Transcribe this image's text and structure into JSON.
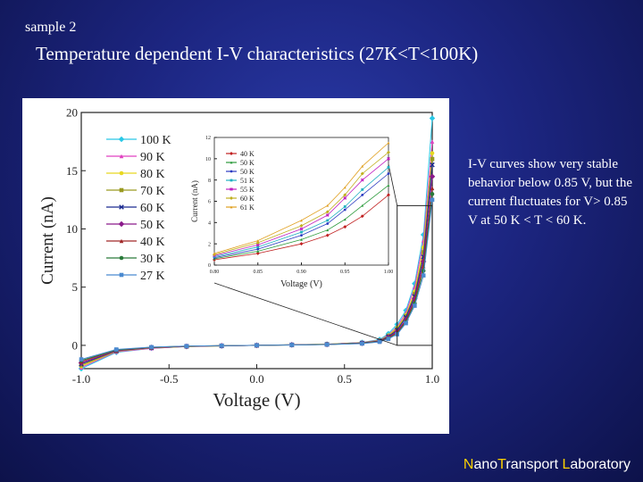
{
  "slide": {
    "corner_label": "sample 2",
    "title": "Temperature dependent I-V characteristics (27K<T<100K)",
    "note": "I-V curves show very stable behavior below 0.85 V, but the current fluctuates for V> 0.85 V at 50 K < T < 60 K.",
    "footer": {
      "part1_hl": "N",
      "part1": "ano",
      "part2_hl": "T",
      "part2": "ransport ",
      "part3_hl": "L",
      "part3": "aboratory"
    }
  },
  "chart_data": [
    {
      "type": "line",
      "xlabel": "Voltage (V)",
      "ylabel": "Current (nA)",
      "xlim": [
        -1.0,
        1.0
      ],
      "ylim": [
        -2,
        20
      ],
      "xticks": [
        "-1.0",
        "-0.5",
        "0.0",
        "0.5",
        "1.0"
      ],
      "yticks": [
        "0",
        "5",
        "10",
        "15",
        "20"
      ],
      "legend_position": "top-left",
      "series": [
        {
          "name": "100 K",
          "color": "#29c8e6",
          "x": [
            -1.0,
            -0.8,
            -0.6,
            -0.4,
            -0.2,
            0.0,
            0.2,
            0.4,
            0.6,
            0.7,
            0.75,
            0.8,
            0.85,
            0.9,
            0.95,
            1.0
          ],
          "y": [
            -2.0,
            -0.6,
            -0.25,
            -0.1,
            -0.05,
            0.0,
            0.05,
            0.1,
            0.25,
            0.5,
            1.0,
            1.8,
            3.0,
            5.3,
            9.5,
            19.5
          ]
        },
        {
          "name": "90 K",
          "color": "#e040c0",
          "x": [
            -1.0,
            -0.8,
            -0.6,
            -0.4,
            -0.2,
            0.0,
            0.2,
            0.4,
            0.6,
            0.7,
            0.75,
            0.8,
            0.85,
            0.9,
            0.95,
            1.0
          ],
          "y": [
            -1.9,
            -0.55,
            -0.25,
            -0.1,
            -0.05,
            0.0,
            0.05,
            0.1,
            0.24,
            0.45,
            0.9,
            1.6,
            2.8,
            5.0,
            9.0,
            17.5
          ]
        },
        {
          "name": "80 K",
          "color": "#e8d820",
          "x": [
            -1.0,
            -0.8,
            -0.6,
            -0.4,
            -0.2,
            0.0,
            0.2,
            0.4,
            0.6,
            0.7,
            0.75,
            0.8,
            0.85,
            0.9,
            0.95,
            1.0
          ],
          "y": [
            -1.8,
            -0.5,
            -0.22,
            -0.1,
            -0.05,
            0.0,
            0.05,
            0.1,
            0.22,
            0.42,
            0.85,
            1.5,
            2.6,
            4.6,
            8.4,
            16.5
          ]
        },
        {
          "name": "70 K",
          "color": "#9a9a20",
          "x": [
            -1.0,
            -0.8,
            -0.6,
            -0.4,
            -0.2,
            0.0,
            0.2,
            0.4,
            0.6,
            0.7,
            0.75,
            0.8,
            0.85,
            0.9,
            0.95,
            1.0
          ],
          "y": [
            -1.7,
            -0.5,
            -0.2,
            -0.1,
            -0.04,
            0.0,
            0.04,
            0.1,
            0.2,
            0.4,
            0.8,
            1.4,
            2.5,
            4.4,
            8.0,
            16.0
          ]
        },
        {
          "name": "60 K",
          "color": "#1a2a90",
          "x": [
            -1.0,
            -0.8,
            -0.6,
            -0.4,
            -0.2,
            0.0,
            0.2,
            0.4,
            0.6,
            0.7,
            0.75,
            0.8,
            0.85,
            0.9,
            0.95,
            1.0
          ],
          "y": [
            -1.6,
            -0.45,
            -0.2,
            -0.08,
            -0.04,
            0.0,
            0.04,
            0.08,
            0.2,
            0.38,
            0.75,
            1.3,
            2.4,
            4.2,
            7.6,
            15.5
          ]
        },
        {
          "name": "50 K",
          "color": "#8a1a8a",
          "x": [
            -1.0,
            -0.8,
            -0.6,
            -0.4,
            -0.2,
            0.0,
            0.2,
            0.4,
            0.6,
            0.7,
            0.75,
            0.8,
            0.85,
            0.9,
            0.95,
            1.0
          ],
          "y": [
            -1.5,
            -0.45,
            -0.18,
            -0.08,
            -0.04,
            0.0,
            0.04,
            0.08,
            0.18,
            0.36,
            0.7,
            1.2,
            2.2,
            4.0,
            7.2,
            14.5
          ]
        },
        {
          "name": "40 K",
          "color": "#a02828",
          "x": [
            -1.0,
            -0.8,
            -0.6,
            -0.4,
            -0.2,
            0.0,
            0.2,
            0.4,
            0.6,
            0.7,
            0.75,
            0.8,
            0.85,
            0.9,
            0.95,
            1.0
          ],
          "y": [
            -1.4,
            -0.4,
            -0.18,
            -0.08,
            -0.03,
            0.0,
            0.03,
            0.08,
            0.18,
            0.34,
            0.65,
            1.1,
            2.1,
            3.8,
            6.8,
            13.5
          ]
        },
        {
          "name": "30 K",
          "color": "#2a7a3a",
          "x": [
            -1.0,
            -0.8,
            -0.6,
            -0.4,
            -0.2,
            0.0,
            0.2,
            0.4,
            0.6,
            0.7,
            0.75,
            0.8,
            0.85,
            0.9,
            0.95,
            1.0
          ],
          "y": [
            -1.3,
            -0.4,
            -0.16,
            -0.07,
            -0.03,
            0.0,
            0.03,
            0.07,
            0.16,
            0.32,
            0.6,
            1.0,
            2.0,
            3.6,
            6.4,
            13.0
          ]
        },
        {
          "name": "27 K",
          "color": "#4a8ad0",
          "x": [
            -1.0,
            -0.8,
            -0.6,
            -0.4,
            -0.2,
            0.0,
            0.2,
            0.4,
            0.6,
            0.7,
            0.75,
            0.8,
            0.85,
            0.9,
            0.95,
            1.0
          ],
          "y": [
            -1.2,
            -0.35,
            -0.15,
            -0.07,
            -0.03,
            0.0,
            0.03,
            0.07,
            0.15,
            0.3,
            0.55,
            0.95,
            1.9,
            3.4,
            6.0,
            12.5
          ]
        }
      ]
    },
    {
      "type": "line",
      "xlabel": "Voltage (V)",
      "ylabel": "Current (nA)",
      "xlim": [
        0.8,
        1.0
      ],
      "ylim": [
        0,
        12
      ],
      "xticks": [
        "0.80",
        "0.85",
        "0.90",
        "0.95",
        "1.00"
      ],
      "yticks": [
        "0",
        "2",
        "4",
        "6",
        "8",
        "10",
        "12"
      ],
      "legend_position": "top-left",
      "series": [
        {
          "name": "40 K",
          "color": "#c02020",
          "x": [
            0.8,
            0.85,
            0.9,
            0.93,
            0.95,
            0.97,
            1.0
          ],
          "y": [
            0.5,
            1.1,
            2.0,
            2.8,
            3.6,
            4.6,
            6.6
          ]
        },
        {
          "name": "50 K",
          "color": "#2a9a3a",
          "x": [
            0.8,
            0.85,
            0.9,
            0.93,
            0.95,
            0.97,
            1.0
          ],
          "y": [
            0.6,
            1.3,
            2.4,
            3.3,
            4.3,
            5.6,
            7.5
          ]
        },
        {
          "name": "50 K",
          "color": "#2a3ac0",
          "x": [
            0.8,
            0.85,
            0.9,
            0.93,
            0.95,
            0.97,
            1.0
          ],
          "y": [
            0.7,
            1.5,
            2.8,
            3.9,
            5.2,
            6.6,
            8.6
          ]
        },
        {
          "name": "51 K",
          "color": "#20b0c0",
          "x": [
            0.8,
            0.85,
            0.9,
            0.93,
            0.95,
            0.97,
            1.0
          ],
          "y": [
            0.8,
            1.7,
            3.1,
            4.2,
            5.5,
            7.1,
            9.2
          ]
        },
        {
          "name": "55 K",
          "color": "#c020c0",
          "x": [
            0.8,
            0.85,
            0.9,
            0.93,
            0.95,
            0.97,
            1.0
          ],
          "y": [
            0.9,
            1.9,
            3.4,
            4.7,
            6.3,
            8.0,
            10.0
          ]
        },
        {
          "name": "60 K",
          "color": "#c0b020",
          "x": [
            0.8,
            0.85,
            0.9,
            0.93,
            0.95,
            0.97,
            1.0
          ],
          "y": [
            1.0,
            2.1,
            3.7,
            5.0,
            6.6,
            8.6,
            10.6
          ]
        },
        {
          "name": "61 K",
          "color": "#e0a020",
          "x": [
            0.8,
            0.85,
            0.9,
            0.93,
            0.95,
            0.97,
            1.0
          ],
          "y": [
            1.1,
            2.3,
            4.2,
            5.6,
            7.3,
            9.3,
            11.5
          ]
        }
      ]
    }
  ]
}
